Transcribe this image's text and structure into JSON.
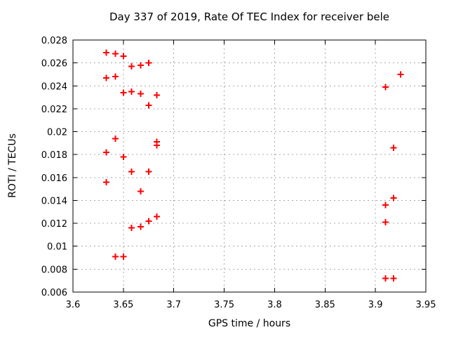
{
  "chart_data": {
    "type": "scatter",
    "title": "Day 337 of 2019, Rate Of TEC Index for receiver bele",
    "xlabel": "GPS time / hours",
    "ylabel": "ROTI / TECUs",
    "xlim": [
      3.6,
      3.95
    ],
    "ylim": [
      0.006,
      0.028
    ],
    "xticks": [
      3.6,
      3.65,
      3.7,
      3.75,
      3.8,
      3.85,
      3.9,
      3.95
    ],
    "xtick_labels": [
      "3.6",
      "3.65",
      "3.7",
      "3.75",
      "3.8",
      "3.85",
      "3.9",
      "3.95"
    ],
    "yticks": [
      0.006,
      0.008,
      0.01,
      0.012,
      0.014,
      0.016,
      0.018,
      0.02,
      0.022,
      0.024,
      0.026,
      0.028
    ],
    "ytick_labels": [
      "0.006",
      "0.008",
      "0.01",
      "0.012",
      "0.014",
      "0.016",
      "0.018",
      "0.02",
      "0.022",
      "0.024",
      "0.026",
      "0.028"
    ],
    "grid": true,
    "legend": "none",
    "marker": {
      "shape": "plus",
      "color": "#ff0000",
      "size": 9,
      "stroke_width": 2
    },
    "colors": {
      "border": "#000000",
      "grid": "#a8a8a8",
      "text": "#000000",
      "background": "#ffffff"
    },
    "series": [
      {
        "name": "ROTI",
        "points": [
          [
            3.633,
            0.0269
          ],
          [
            3.642,
            0.0268
          ],
          [
            3.65,
            0.0266
          ],
          [
            3.658,
            0.0257
          ],
          [
            3.667,
            0.0258
          ],
          [
            3.675,
            0.026
          ],
          [
            3.633,
            0.0247
          ],
          [
            3.642,
            0.0248
          ],
          [
            3.65,
            0.0234
          ],
          [
            3.658,
            0.0235
          ],
          [
            3.667,
            0.0233
          ],
          [
            3.683,
            0.0232
          ],
          [
            3.675,
            0.0223
          ],
          [
            3.642,
            0.0194
          ],
          [
            3.683,
            0.0191
          ],
          [
            3.683,
            0.0188
          ],
          [
            3.633,
            0.0182
          ],
          [
            3.65,
            0.0178
          ],
          [
            3.658,
            0.0165
          ],
          [
            3.675,
            0.0165
          ],
          [
            3.633,
            0.0156
          ],
          [
            3.667,
            0.0148
          ],
          [
            3.683,
            0.0126
          ],
          [
            3.675,
            0.0122
          ],
          [
            3.667,
            0.0117
          ],
          [
            3.658,
            0.0116
          ],
          [
            3.642,
            0.0091
          ],
          [
            3.65,
            0.0091
          ],
          [
            3.925,
            0.025
          ],
          [
            3.91,
            0.0239
          ],
          [
            3.918,
            0.0186
          ],
          [
            3.918,
            0.0142
          ],
          [
            3.91,
            0.0136
          ],
          [
            3.91,
            0.0121
          ],
          [
            3.91,
            0.0072
          ],
          [
            3.918,
            0.0072
          ]
        ]
      }
    ]
  }
}
